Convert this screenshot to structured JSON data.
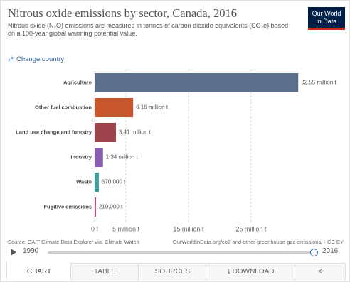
{
  "chart_data": {
    "type": "bar",
    "orientation": "horizontal",
    "title": "Nitrous oxide emissions by sector, Canada, 2016",
    "subtitle": "Nitrous oxide (N₂O) emissions are measured in tonnes of carbon dioxide equivalents (CO₂e) based on a 100-year global warming potential value.",
    "categories": [
      "Agriculture",
      "Other fuel combustion",
      "Land use change and forestry",
      "Industry",
      "Waste",
      "Fugitive emissions"
    ],
    "values": [
      32550000,
      6160000,
      3410000,
      1340000,
      670000,
      210000
    ],
    "value_labels": [
      "32.55 million t",
      "6.16 million t",
      "3.41 million t",
      "1.34 million t",
      "670,000 t",
      "210,000 t"
    ],
    "colors": [
      "#5b6f8a",
      "#c8552b",
      "#9c434c",
      "#8a5cb0",
      "#3a9e9c",
      "#c92f5c"
    ],
    "xlim": [
      0,
      34000000
    ],
    "xticks": [
      {
        "value": 0,
        "label": "0 t"
      },
      {
        "value": 5000000,
        "label": "5 million t"
      },
      {
        "value": 15000000,
        "label": "15 million t"
      },
      {
        "value": 25000000,
        "label": "25 million t"
      }
    ],
    "grid": true,
    "source": "Source: CAIT Climate Data Explorer via. Climate Watch",
    "url": "OurWorldInData.org/co2-and-other-greenhouse-gas-emissions/ • CC BY"
  },
  "ui": {
    "logo": [
      "Our World",
      "in Data"
    ],
    "change_country": "Change country",
    "timeline": {
      "start": "1990",
      "end": "2016"
    },
    "tabs": [
      "CHART",
      "TABLE",
      "SOURCES",
      "DOWNLOAD"
    ]
  }
}
